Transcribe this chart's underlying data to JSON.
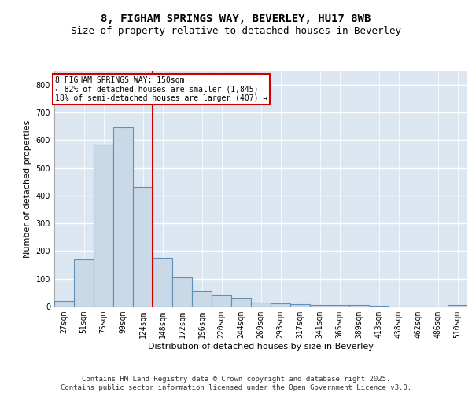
{
  "title_line1": "8, FIGHAM SPRINGS WAY, BEVERLEY, HU17 8WB",
  "title_line2": "Size of property relative to detached houses in Beverley",
  "xlabel": "Distribution of detached houses by size in Beverley",
  "ylabel": "Number of detached properties",
  "categories": [
    "27sqm",
    "51sqm",
    "75sqm",
    "99sqm",
    "124sqm",
    "148sqm",
    "172sqm",
    "196sqm",
    "220sqm",
    "244sqm",
    "269sqm",
    "293sqm",
    "317sqm",
    "341sqm",
    "365sqm",
    "389sqm",
    "413sqm",
    "438sqm",
    "462sqm",
    "486sqm",
    "510sqm"
  ],
  "values": [
    20,
    170,
    585,
    645,
    430,
    175,
    105,
    58,
    42,
    32,
    15,
    10,
    9,
    5,
    5,
    5,
    3,
    1,
    1,
    0,
    5
  ],
  "bar_color": "#c9d9e8",
  "bar_edge_color": "#6090b8",
  "vline_position": 4.5,
  "vline_color": "#cc0000",
  "annotation_text": "8 FIGHAM SPRINGS WAY: 150sqm\n← 82% of detached houses are smaller (1,845)\n18% of semi-detached houses are larger (407) →",
  "annotation_box_facecolor": "#ffffff",
  "annotation_box_edgecolor": "#cc0000",
  "ylim": [
    0,
    850
  ],
  "yticks": [
    0,
    100,
    200,
    300,
    400,
    500,
    600,
    700,
    800
  ],
  "grid_color": "#ffffff",
  "bg_color": "#dce6f0",
  "footer_line1": "Contains HM Land Registry data © Crown copyright and database right 2025.",
  "footer_line2": "Contains public sector information licensed under the Open Government Licence v3.0.",
  "title_fontsize": 10,
  "subtitle_fontsize": 9,
  "axis_label_fontsize": 8,
  "tick_fontsize": 7,
  "annotation_fontsize": 7,
  "footer_fontsize": 6.5
}
